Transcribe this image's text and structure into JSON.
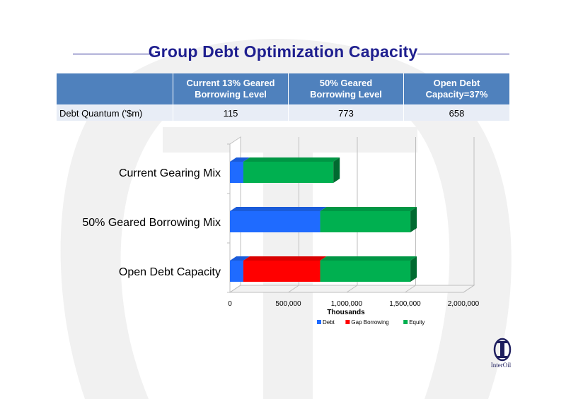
{
  "title": "Group Debt Optimization Capacity",
  "table": {
    "headers": [
      "",
      "Current 13% Geared Borrowing Level",
      "50% Geared Borrowing Level",
      "Open Debt Capacity=37%"
    ],
    "header_lines": [
      [
        ""
      ],
      [
        "Current 13% Geared",
        "Borrowing Level"
      ],
      [
        "50% Geared",
        "Borrowing Level"
      ],
      [
        "Open Debt",
        "Capacity=37%"
      ]
    ],
    "rows": [
      [
        "Debt Quantum ('$m)",
        "115",
        "773",
        "658"
      ]
    ]
  },
  "chart_data": {
    "type": "bar",
    "orientation": "horizontal",
    "stacked": true,
    "categories": [
      "Current Gearing Mix",
      "50% Geared Borrowing Mix",
      "Open Debt Capacity"
    ],
    "series": [
      {
        "name": "Debt",
        "color": "#1f6bff",
        "values": [
          115000,
          773000,
          115000
        ]
      },
      {
        "name": "Gap Borrowing",
        "color": "#ff0000",
        "values": [
          0,
          0,
          658000
        ]
      },
      {
        "name": "Equity",
        "color": "#00b050",
        "values": [
          771000,
          773000,
          773000
        ]
      }
    ],
    "xlabel": "Thousands",
    "xlim": [
      0,
      2000000
    ],
    "xticks": [
      "0",
      "500,000",
      "1,000,000",
      "1,500,000",
      "2,000,000"
    ],
    "legend": "bottom",
    "grid": true
  },
  "logo": {
    "name": "InterOil",
    "text": "InterOil"
  }
}
